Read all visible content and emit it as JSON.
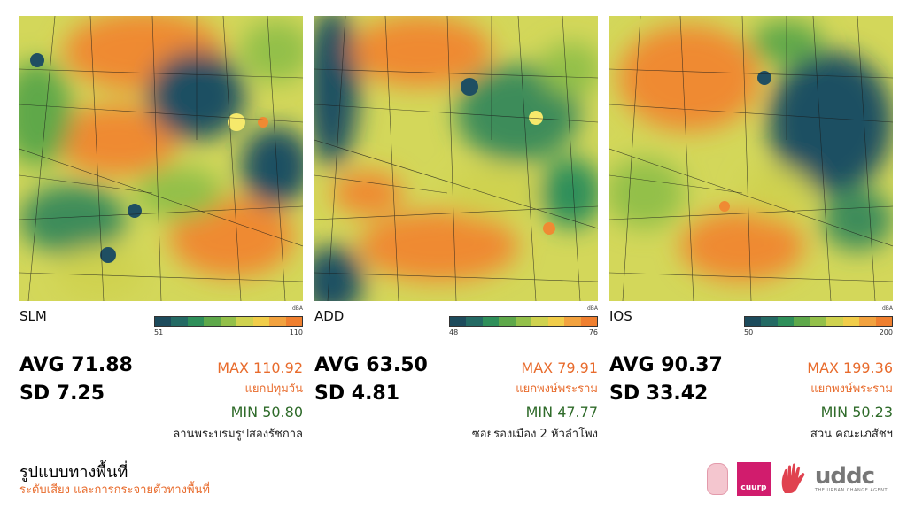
{
  "panels": [
    {
      "label": "SLM",
      "legend": {
        "unit": "dBA",
        "min": "51",
        "max": "110"
      },
      "avg": "AVG 71.88",
      "sd": "SD 7.25",
      "max": "MAX 110.92",
      "max_location": "แยกปทุมวัน",
      "min": "MIN 50.80",
      "min_location": "ลานพระบรมรูปสองรัชกาล"
    },
    {
      "label": "ADD",
      "legend": {
        "unit": "dBA",
        "min": "48",
        "max": "76"
      },
      "avg": "AVG 63.50",
      "sd": "SD 4.81",
      "max": "MAX 79.91",
      "max_location": "แยกพงษ์พระราม",
      "min": "MIN 47.77",
      "min_location": "ซอยรองเมือง 2 หัวลำโพง"
    },
    {
      "label": "IOS",
      "legend": {
        "unit": "dBA",
        "min": "50",
        "max": "200"
      },
      "avg": "AVG 90.37",
      "sd": "SD 33.42",
      "max": "MAX 199.36",
      "max_location": "แยกพงษ์พระราม",
      "min": "MIN 50.23",
      "min_location": "สวน คณะเภสัชฯ"
    }
  ],
  "legend_colors": [
    "#1d4b5c",
    "#246a64",
    "#2f8f5a",
    "#5ea84a",
    "#93c04a",
    "#cfd24f",
    "#f1cd4a",
    "#f2a23f",
    "#ef7f2f"
  ],
  "colors": {
    "max_text": "#e86b2c",
    "min_text": "#2f6b2a"
  },
  "footer": {
    "title": "รูปแบบทางพื้นที่",
    "subtitle": "ระดับเสียง และการกระจายตัวทางพื้นที่"
  },
  "logos": {
    "seal_icon": "university-seal-icon",
    "cuurp_text": "cuurp",
    "hand_icon": "red-hand-icon",
    "uddc_word": "uddc",
    "uddc_tagline": "THE URBAN CHANGE AGENT"
  }
}
